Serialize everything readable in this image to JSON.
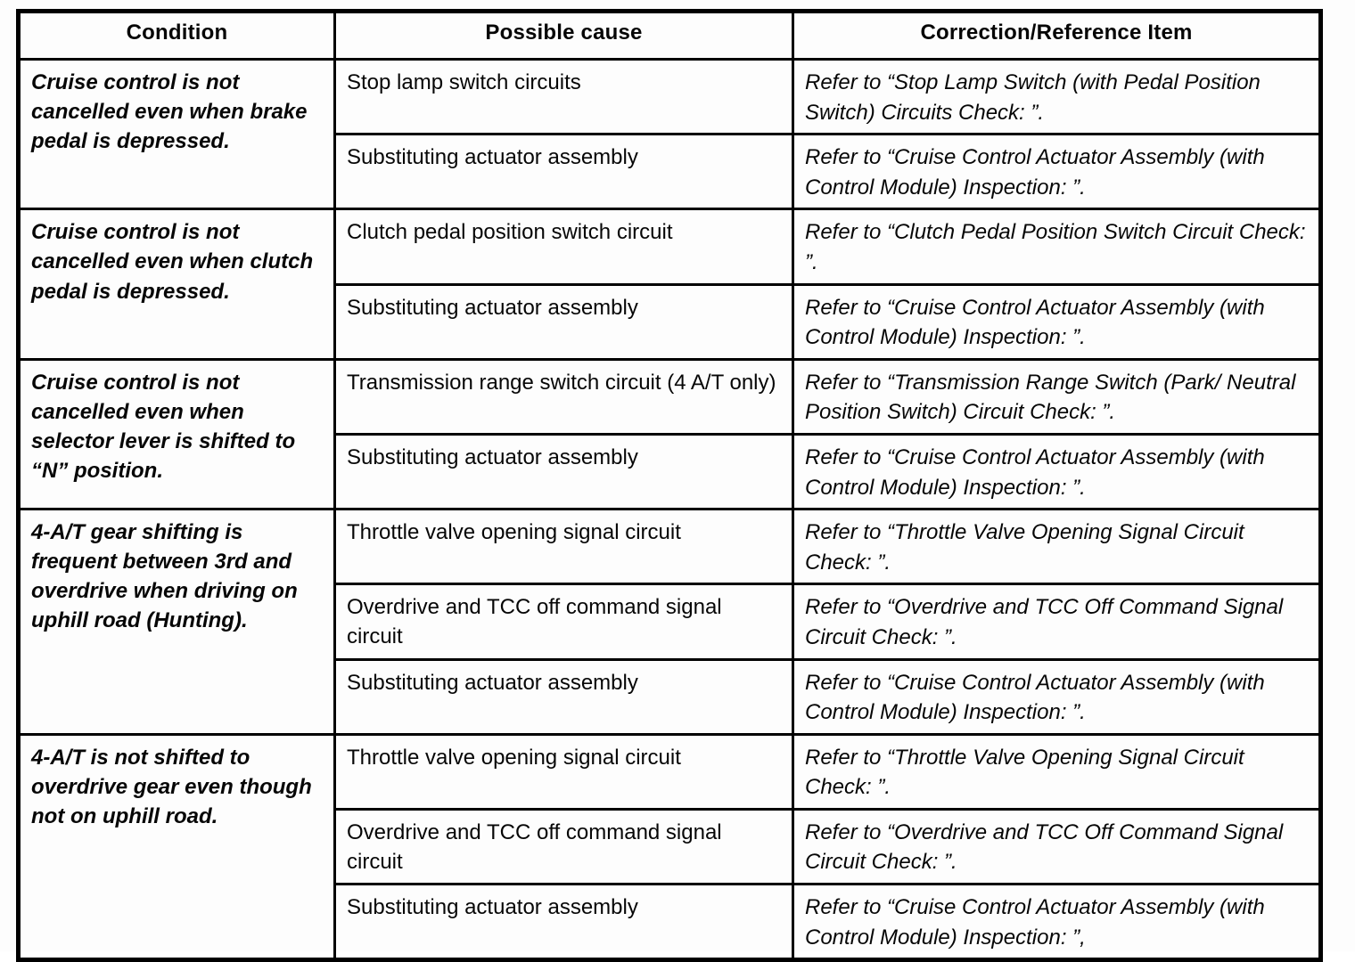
{
  "table": {
    "headers": [
      "Condition",
      "Possible cause",
      "Correction/Reference Item"
    ],
    "groups": [
      {
        "condition": "Cruise control is not cancelled even when brake pedal is depressed.",
        "rows": [
          {
            "cause": "Stop lamp switch circuits",
            "correction": "Refer to “Stop Lamp Switch (with Pedal Position Switch) Circuits Check: ”."
          },
          {
            "cause": "Substituting actuator assembly",
            "correction": "Refer to “Cruise Control Actuator Assembly (with Control Module) Inspection: ”."
          }
        ]
      },
      {
        "condition": "Cruise control is not cancelled even when clutch pedal is depressed.",
        "rows": [
          {
            "cause": "Clutch pedal position switch circuit",
            "correction": "Refer to “Clutch Pedal Position Switch Circuit Check: ”."
          },
          {
            "cause": "Substituting actuator assembly",
            "correction": "Refer to “Cruise Control Actuator Assembly (with Control Module) Inspection: ”."
          }
        ]
      },
      {
        "condition": "Cruise control is not cancelled even when selector lever is shifted to “N” position.",
        "rows": [
          {
            "cause": "Transmission range switch circuit (4 A/T only)",
            "correction": "Refer to “Transmission Range Switch (Park/ Neutral Position Switch) Circuit Check: ”."
          },
          {
            "cause": "Substituting actuator assembly",
            "correction": "Refer to “Cruise Control Actuator Assembly (with Control Module) Inspection: ”."
          }
        ]
      },
      {
        "condition": "4-A/T gear shifting is frequent between 3rd and overdrive when driving on uphill road (Hunting).",
        "rows": [
          {
            "cause": "Throttle valve opening signal circuit",
            "correction": "Refer to “Throttle Valve Opening Signal Circuit Check: ”."
          },
          {
            "cause": "Overdrive and TCC off command signal circuit",
            "correction": "Refer to “Overdrive and TCC Off Command Signal Circuit Check: ”."
          },
          {
            "cause": "Substituting actuator assembly",
            "correction": "Refer to “Cruise Control Actuator Assembly (with Control Module) Inspection: ”."
          }
        ]
      },
      {
        "condition": "4-A/T is not shifted to overdrive gear even though not on uphill road.",
        "rows": [
          {
            "cause": "Throttle valve opening signal circuit",
            "correction": "Refer to “Throttle Valve Opening Signal Circuit Check: ”."
          },
          {
            "cause": "Overdrive and TCC off command signal circuit",
            "correction": "Refer to “Overdrive and TCC Off Command Signal Circuit Check: ”."
          },
          {
            "cause": "Substituting actuator assembly",
            "correction": "Refer to “Cruise Control Actuator Assembly (with Control Module) Inspection: ”,"
          }
        ]
      }
    ]
  }
}
